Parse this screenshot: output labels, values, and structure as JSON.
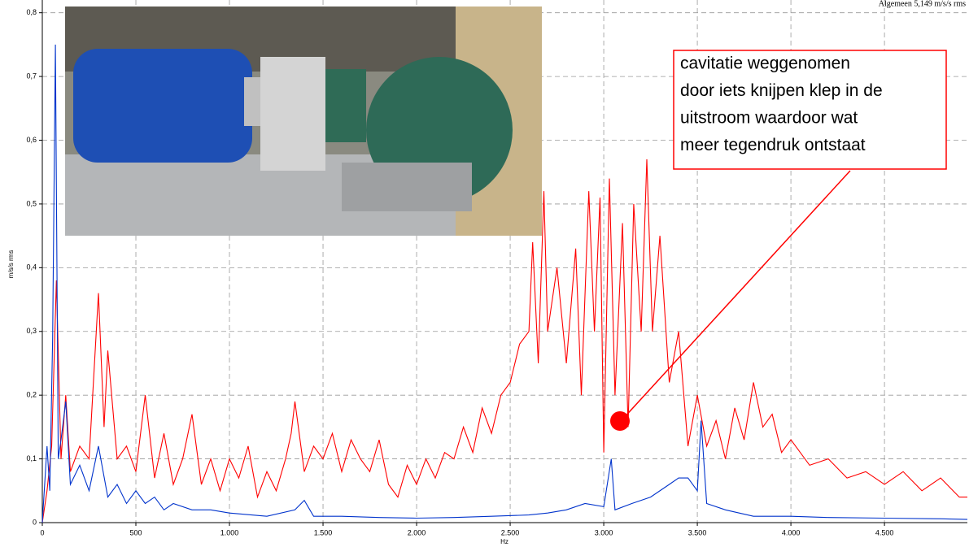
{
  "chart_data": {
    "type": "line",
    "subtitle": "Algemeen 5,149 m/s/s rms",
    "x_label": "Hz",
    "y_label": "m/s/s rms",
    "xlim": [
      0,
      4943
    ],
    "ylim": [
      0,
      0.82
    ],
    "grid": true,
    "xticks": [
      0,
      500,
      {
        "value": 1000,
        "label": "1.000"
      },
      {
        "value": 1500,
        "label": "1.500"
      },
      {
        "value": 2000,
        "label": "2.000"
      },
      {
        "value": 2500,
        "label": "2.500"
      },
      {
        "value": 3000,
        "label": "3.000"
      },
      {
        "value": 3500,
        "label": "3.500"
      },
      {
        "value": 4000,
        "label": "4.000"
      },
      {
        "value": 4500,
        "label": "4.500"
      }
    ],
    "yticks": [
      0,
      {
        "value": 0.1,
        "label": "0,1"
      },
      {
        "value": 0.2,
        "label": "0,2"
      },
      {
        "value": 0.3,
        "label": "0,3"
      },
      {
        "value": 0.4,
        "label": "0,4"
      },
      {
        "value": 0.5,
        "label": "0,5"
      },
      {
        "value": 0.6,
        "label": "0,6"
      },
      {
        "value": 0.7,
        "label": "0,7"
      },
      {
        "value": 0.8,
        "label": "0,8"
      }
    ],
    "annotation": [
      "cavitatie weggenomen",
      "door iets knijpen klep in de",
      "uitstroom waardoor wat",
      "meer tegendruk ontstaat"
    ],
    "series": [
      {
        "color": "#ff0000",
        "x": [
          0,
          25,
          50,
          75,
          100,
          125,
          150,
          200,
          250,
          300,
          330,
          350,
          400,
          450,
          500,
          550,
          600,
          650,
          700,
          750,
          800,
          850,
          900,
          950,
          1000,
          1050,
          1100,
          1150,
          1200,
          1250,
          1300,
          1330,
          1350,
          1400,
          1450,
          1500,
          1550,
          1600,
          1650,
          1700,
          1750,
          1800,
          1850,
          1900,
          1950,
          2000,
          2050,
          2100,
          2150,
          2200,
          2250,
          2300,
          2350,
          2400,
          2450,
          2500,
          2550,
          2600,
          2620,
          2650,
          2680,
          2700,
          2750,
          2800,
          2850,
          2880,
          2920,
          2950,
          2980,
          3000,
          3030,
          3060,
          3100,
          3130,
          3160,
          3200,
          3230,
          3260,
          3300,
          3350,
          3400,
          3450,
          3500,
          3550,
          3600,
          3650,
          3700,
          3750,
          3800,
          3850,
          3900,
          3950,
          4000,
          4100,
          4200,
          4300,
          4400,
          4500,
          4600,
          4700,
          4800,
          4900,
          4943
        ],
        "values": [
          0,
          0.05,
          0.12,
          0.38,
          0.1,
          0.2,
          0.08,
          0.12,
          0.1,
          0.36,
          0.15,
          0.27,
          0.1,
          0.12,
          0.08,
          0.2,
          0.07,
          0.14,
          0.06,
          0.1,
          0.17,
          0.06,
          0.1,
          0.05,
          0.1,
          0.07,
          0.12,
          0.04,
          0.08,
          0.05,
          0.1,
          0.14,
          0.19,
          0.08,
          0.12,
          0.1,
          0.14,
          0.08,
          0.13,
          0.1,
          0.08,
          0.13,
          0.06,
          0.04,
          0.09,
          0.06,
          0.1,
          0.07,
          0.11,
          0.1,
          0.15,
          0.11,
          0.18,
          0.14,
          0.2,
          0.22,
          0.28,
          0.3,
          0.44,
          0.25,
          0.52,
          0.3,
          0.4,
          0.25,
          0.43,
          0.2,
          0.52,
          0.3,
          0.51,
          0.11,
          0.54,
          0.2,
          0.47,
          0.15,
          0.5,
          0.3,
          0.57,
          0.3,
          0.45,
          0.22,
          0.3,
          0.12,
          0.2,
          0.12,
          0.16,
          0.1,
          0.18,
          0.13,
          0.22,
          0.15,
          0.17,
          0.11,
          0.13,
          0.09,
          0.1,
          0.07,
          0.08,
          0.06,
          0.08,
          0.05,
          0.07,
          0.04,
          0.04
        ]
      },
      {
        "color": "#0033cc",
        "x": [
          0,
          25,
          40,
          55,
          70,
          85,
          100,
          125,
          150,
          200,
          250,
          300,
          350,
          400,
          450,
          500,
          550,
          600,
          650,
          700,
          800,
          900,
          1000,
          1200,
          1350,
          1400,
          1450,
          1600,
          1800,
          2000,
          2200,
          2400,
          2600,
          2700,
          2800,
          2900,
          3000,
          3040,
          3060,
          3150,
          3250,
          3350,
          3400,
          3450,
          3500,
          3520,
          3550,
          3650,
          3800,
          4000,
          4200,
          4500,
          4800,
          4943
        ],
        "values": [
          0,
          0.12,
          0.05,
          0.29,
          0.75,
          0.1,
          0.13,
          0.19,
          0.06,
          0.09,
          0.05,
          0.12,
          0.04,
          0.06,
          0.03,
          0.05,
          0.03,
          0.04,
          0.02,
          0.03,
          0.02,
          0.02,
          0.015,
          0.01,
          0.02,
          0.035,
          0.01,
          0.01,
          0.008,
          0.007,
          0.008,
          0.01,
          0.012,
          0.015,
          0.02,
          0.03,
          0.025,
          0.1,
          0.02,
          0.03,
          0.04,
          0.06,
          0.07,
          0.07,
          0.05,
          0.16,
          0.03,
          0.02,
          0.01,
          0.01,
          0.008,
          0.007,
          0.006,
          0.005
        ]
      }
    ]
  }
}
